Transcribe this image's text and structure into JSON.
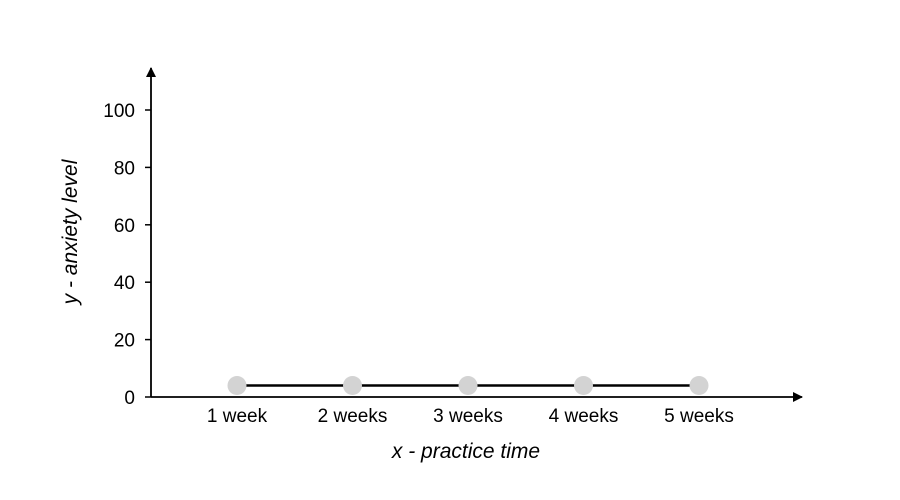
{
  "chart_data": {
    "type": "line",
    "categories": [
      "1 week",
      "2 weeks",
      "3 weeks",
      "4 weeks",
      "5 weeks"
    ],
    "series": [
      {
        "values": [
          4,
          4,
          4,
          4,
          4
        ]
      }
    ],
    "xlabel": "x - practice time",
    "ylabel": "y - anxiety level",
    "ylim": [
      0,
      100
    ],
    "yticks": [
      0,
      20,
      40,
      60,
      80,
      100
    ],
    "grid": false,
    "colors": {
      "axis": "#000000",
      "line": "#000000",
      "marker": "#d3d3d3"
    }
  }
}
